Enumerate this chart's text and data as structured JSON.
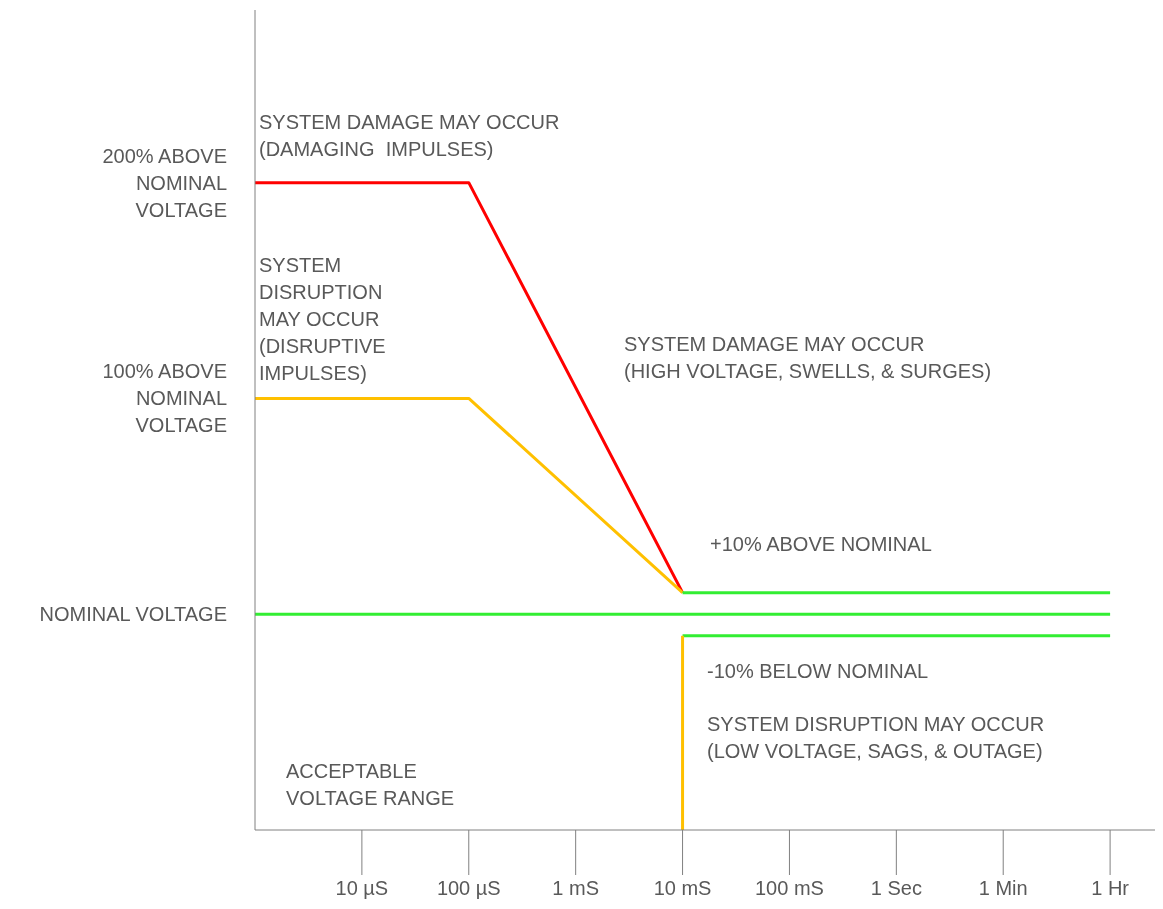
{
  "chart_data": {
    "type": "line",
    "categories": [
      null,
      "10 µS",
      "100 µS",
      "1 mS",
      "10 mS",
      "100 mS",
      "1 Sec",
      "1 Min",
      "1 Hr"
    ],
    "ylim": [
      -100,
      280
    ],
    "yticks": [
      {
        "value": 200,
        "label": "200% ABOVE\nNOMINAL\nVOLTAGE"
      },
      {
        "value": 100,
        "label": "100% ABOVE\nNOMINAL\nVOLTAGE"
      },
      {
        "value": 0,
        "label": "NOMINAL VOLTAGE"
      }
    ],
    "series": [
      {
        "color": "#ff0000",
        "x": [
          null,
          "100 µS",
          "10 mS"
        ],
        "values": [
          200,
          200,
          10
        ]
      },
      {
        "color": "#ffc000",
        "x": [
          null,
          "100 µS",
          "10 mS"
        ],
        "values": [
          100,
          100,
          10
        ]
      },
      {
        "color": "#33ee33",
        "x": [
          "10 mS",
          "1 Hr"
        ],
        "values": [
          10,
          10
        ]
      },
      {
        "color": "#33ee33",
        "x": [
          null,
          "1 Hr"
        ],
        "values": [
          0,
          0
        ]
      },
      {
        "color": "#33ee33",
        "x": [
          "10 mS",
          "1 Hr"
        ],
        "values": [
          -10,
          -10
        ]
      },
      {
        "color": "#ffc000",
        "x": [
          "10 mS",
          "10 mS"
        ],
        "values": [
          -10,
          -100
        ]
      }
    ],
    "annotations": [
      "SYSTEM DAMAGE MAY OCCUR\n(DAMAGING  IMPULSES)",
      "SYSTEM\nDISRUPTION\nMAY OCCUR\n(DISRUPTIVE\nIMPULSES)",
      "SYSTEM DAMAGE MAY OCCUR\n(HIGH VOLTAGE, SWELLS, & SURGES)",
      "+10% ABOVE NOMINAL",
      "-10% BELOW NOMINAL",
      "SYSTEM DISRUPTION MAY OCCUR\n(LOW VOLTAGE, SAGS, & OUTAGE)",
      "ACCEPTABLE\nVOLTAGE RANGE"
    ]
  }
}
